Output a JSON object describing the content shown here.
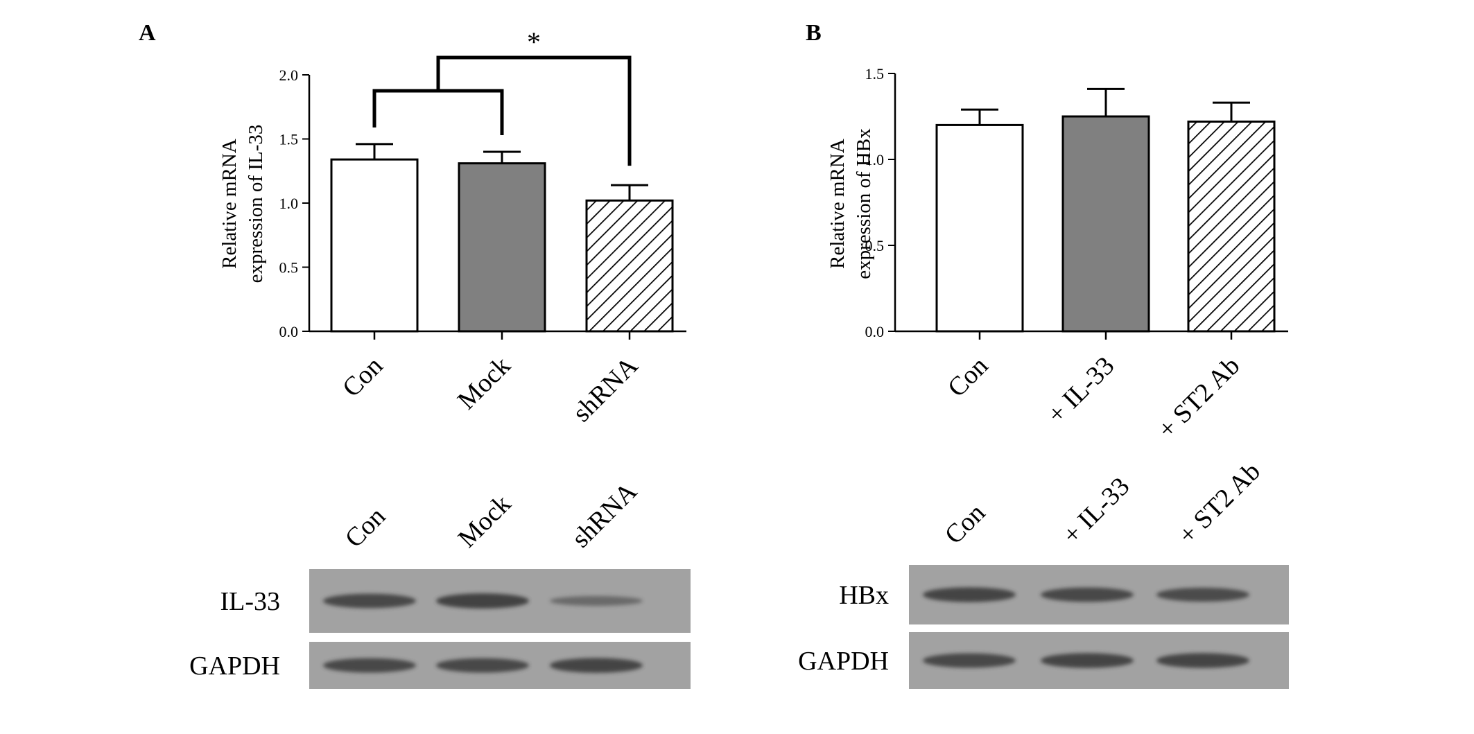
{
  "colors": {
    "ink": "#000000",
    "bar_open": "#ffffff",
    "bar_grey": "#808080",
    "blot_bg": "#a2a2a2",
    "band": "#3c3c3c"
  },
  "chart_data": [
    {
      "panel": "A",
      "type": "bar",
      "ylabel": [
        "Relative mRNA",
        "expression of IL-33"
      ],
      "ylim": [
        0,
        2.0
      ],
      "yticks": [
        "0.0",
        "0.5",
        "1.0",
        "1.5",
        "2.0"
      ],
      "categories": [
        "Con",
        "Mock",
        "shRNA"
      ],
      "values": [
        1.34,
        1.31,
        1.02
      ],
      "errors": [
        0.12,
        0.09,
        0.12
      ],
      "fills": [
        "open",
        "grey",
        "hatched"
      ],
      "significance": "*"
    },
    {
      "panel": "B",
      "type": "bar",
      "ylabel": [
        "Relative mRNA",
        "expression of HBx"
      ],
      "ylim": [
        0,
        1.5
      ],
      "yticks": [
        "0.0",
        "0.5",
        "1.0",
        "1.5"
      ],
      "categories": [
        "Con",
        "+ IL-33",
        "+ ST2 Ab"
      ],
      "values": [
        1.2,
        1.25,
        1.22
      ],
      "errors": [
        0.09,
        0.16,
        0.11
      ],
      "fills": [
        "open",
        "grey",
        "hatched"
      ]
    }
  ],
  "blots": [
    {
      "panel": "A",
      "lanes": [
        "Con",
        "Mock",
        "shRNA"
      ],
      "rows": [
        {
          "label": "IL-33",
          "intensity": [
            0.9,
            1.0,
            0.35
          ]
        },
        {
          "label": "GAPDH",
          "intensity": [
            0.9,
            0.9,
            0.95
          ]
        }
      ]
    },
    {
      "panel": "B",
      "lanes": [
        "Con",
        "+ IL-33",
        "+ ST2 Ab"
      ],
      "rows": [
        {
          "label": "HBx",
          "intensity": [
            0.95,
            0.9,
            0.85
          ]
        },
        {
          "label": "GAPDH",
          "intensity": [
            0.9,
            0.95,
            0.95
          ]
        }
      ]
    }
  ]
}
